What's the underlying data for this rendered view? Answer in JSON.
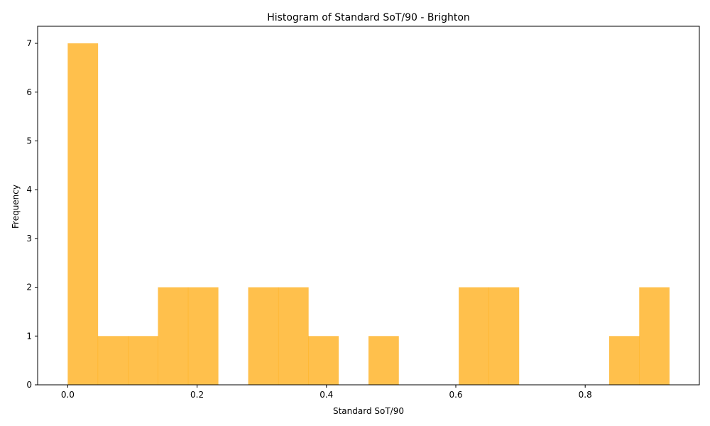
{
  "chart_data": {
    "type": "bar",
    "title": "Histogram of Standard SoT/90 - Brighton",
    "xlabel": "Standard SoT/90",
    "ylabel": "Frequency",
    "xlim": [
      -0.0465,
      0.9765
    ],
    "ylim": [
      0,
      7.35
    ],
    "xticks": [
      0.0,
      0.2,
      0.4,
      0.6,
      0.8
    ],
    "xtick_labels": [
      "0.0",
      "0.2",
      "0.4",
      "0.6",
      "0.8"
    ],
    "yticks": [
      0,
      1,
      2,
      3,
      4,
      5,
      6,
      7
    ],
    "ytick_labels": [
      "0",
      "1",
      "2",
      "3",
      "4",
      "5",
      "6",
      "7"
    ],
    "bin_edges": [
      0.0,
      0.0465,
      0.093,
      0.1395,
      0.186,
      0.2325,
      0.279,
      0.3255,
      0.372,
      0.4185,
      0.465,
      0.5115,
      0.558,
      0.6045,
      0.651,
      0.6975,
      0.744,
      0.7905,
      0.837,
      0.8835,
      0.93
    ],
    "counts": [
      7,
      1,
      1,
      2,
      2,
      0,
      2,
      2,
      1,
      0,
      1,
      0,
      0,
      2,
      2,
      0,
      0,
      0,
      1,
      2
    ],
    "bar_color": "#FFA500",
    "bar_opacity": 0.7,
    "grid": false,
    "legend": "none"
  }
}
